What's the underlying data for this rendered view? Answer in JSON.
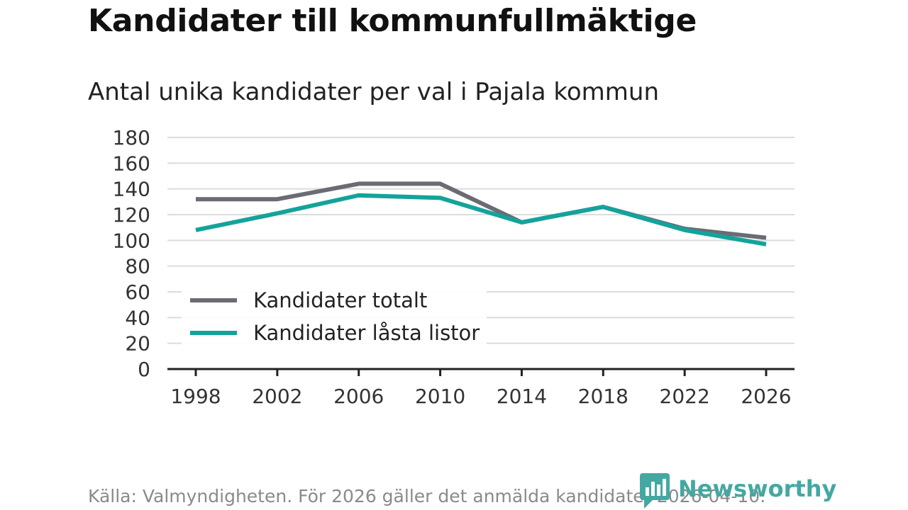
{
  "title": "Kandidater till kommunfullmäktige",
  "subtitle": "Antal unika kandidater per val i Pajala kommun",
  "source": "Källa: Valmyndigheten. För 2026 gäller det anmälda kandidater 2026-04-10.",
  "brand": {
    "name": "Newsworthy",
    "color": "#44a8a2"
  },
  "chart_data": {
    "type": "line",
    "title": "Kandidater till kommunfullmäktige",
    "subtitle": "Antal unika kandidater per val i Pajala kommun",
    "xlabel": "",
    "ylabel": "",
    "categories": [
      "1998",
      "2002",
      "2006",
      "2010",
      "2014",
      "2018",
      "2022",
      "2026"
    ],
    "ylim": [
      0,
      180
    ],
    "yticks": [
      0,
      20,
      40,
      60,
      80,
      100,
      120,
      140,
      160,
      180
    ],
    "grid": true,
    "legend_position": "lower-left",
    "series": [
      {
        "name": "Kandidater totalt",
        "color": "#6b6b73",
        "values": [
          132,
          132,
          144,
          144,
          114,
          126,
          109,
          102
        ]
      },
      {
        "name": "Kandidater låsta listor",
        "color": "#13a39b",
        "values": [
          108,
          121,
          135,
          133,
          114,
          126,
          108,
          97
        ]
      }
    ]
  }
}
